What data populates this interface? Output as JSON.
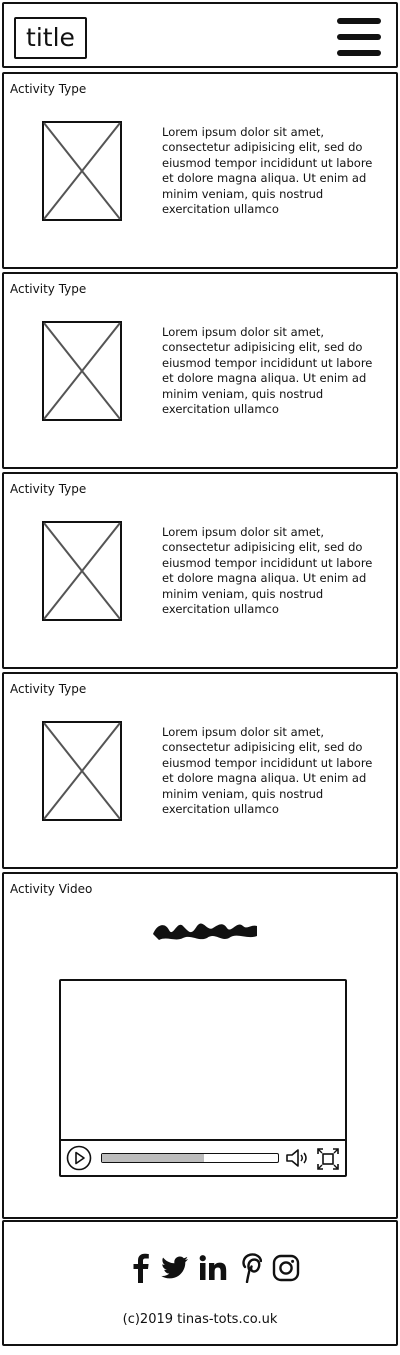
{
  "header": {
    "title": "title",
    "menu_icon": "hamburger-menu-icon"
  },
  "activities": [
    {
      "type_label": "Activity Type",
      "image_icon": "image-placeholder-icon",
      "description": "Lorem ipsum dolor sit amet, consectetur adipisicing elit, sed do eiusmod tempor incididunt ut labore et dolore magna aliqua. Ut enim ad minim veniam, quis nostrud exercitation ullamco"
    },
    {
      "type_label": "Activity Type",
      "image_icon": "image-placeholder-icon",
      "description": "Lorem ipsum dolor sit amet, consectetur adipisicing elit, sed do eiusmod tempor incididunt ut labore et dolore magna aliqua. Ut enim ad minim veniam, quis nostrud exercitation ullamco"
    },
    {
      "type_label": "Activity Type",
      "image_icon": "image-placeholder-icon",
      "description": "Lorem ipsum dolor sit amet, consectetur adipisicing elit, sed do eiusmod tempor incididunt ut labore et dolore magna aliqua. Ut enim ad minim veniam, quis nostrud exercitation ullamco"
    },
    {
      "type_label": "Activity Type",
      "image_icon": "image-placeholder-icon",
      "description": "Lorem ipsum dolor sit amet, consectetur adipisicing elit, sed do eiusmod tempor incididunt ut labore et dolore magna aliqua. Ut enim ad minim veniam, quis nostrud exercitation ullamco"
    }
  ],
  "video_section": {
    "label": "Activity Video",
    "heading_icon": "scribble-heading-icon",
    "player": {
      "progress_fraction": 0.58,
      "controls": [
        "play-icon",
        "volume-icon",
        "fullscreen-icon"
      ]
    }
  },
  "footer": {
    "social_icons": [
      "facebook-icon",
      "twitter-icon",
      "linkedin-icon",
      "pinterest-icon",
      "instagram-icon"
    ],
    "copyright": "(c)2019 tinas-tots.co.uk"
  },
  "colors": {
    "ink": "#111111",
    "placeholder_stroke": "#555555",
    "progress_fill": "#bdbdbd",
    "background": "#ffffff"
  }
}
